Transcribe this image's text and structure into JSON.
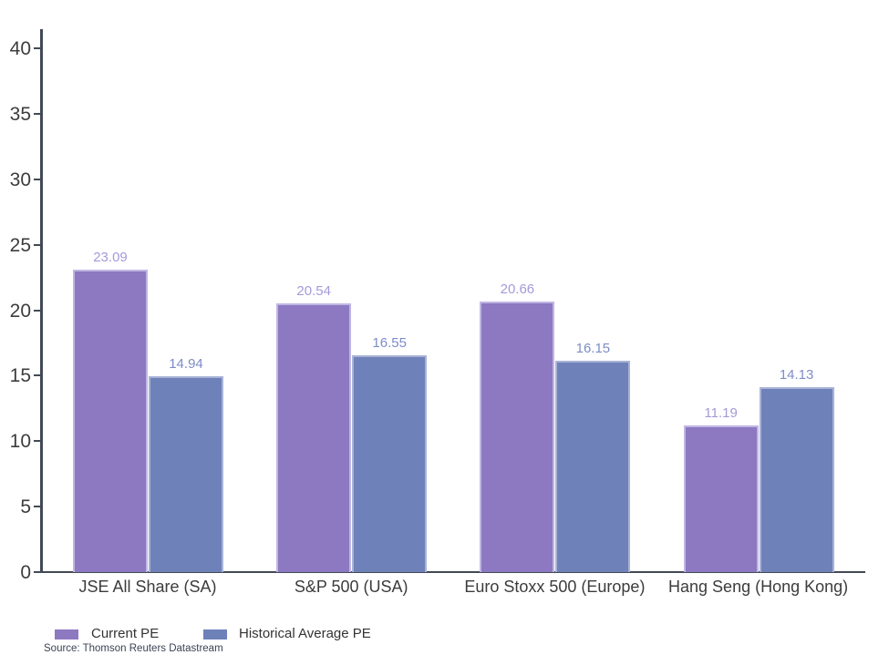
{
  "chart_data": {
    "type": "bar",
    "categories": [
      "JSE All Share (SA)",
      "S&P 500 (USA)",
      "Euro Stoxx 500 (Europe)",
      "Hang Seng (Hong Kong)"
    ],
    "series": [
      {
        "name": "Current PE",
        "values": [
          23.09,
          20.54,
          20.66,
          11.19
        ],
        "color": "#8c79c1",
        "border_color": "#c0b6e4",
        "label_color": "#a49ad8"
      },
      {
        "name": "Historical Average PE",
        "values": [
          14.94,
          16.55,
          16.15,
          14.13
        ],
        "color": "#6f81b9",
        "border_color": "#a9b3d6",
        "label_color": "#7e8cc8"
      }
    ],
    "title": "",
    "xlabel": "",
    "ylabel": "",
    "ylim": [
      0,
      40
    ],
    "yticks": [
      0,
      5,
      10,
      15,
      20,
      25,
      30,
      35,
      40
    ],
    "grid": false,
    "legend_position": "bottom-left",
    "value_labels": true,
    "value_label_decimals": 2
  },
  "source": {
    "label": "Source: Thomson Reuters Datastream"
  },
  "colors": {
    "axis": "#434a56",
    "tick_text": "#3d3d3d",
    "category_text": "#3c3c3c",
    "legend_text": "#333333",
    "source_text": "#3d4354",
    "background": "#ffffff"
  }
}
